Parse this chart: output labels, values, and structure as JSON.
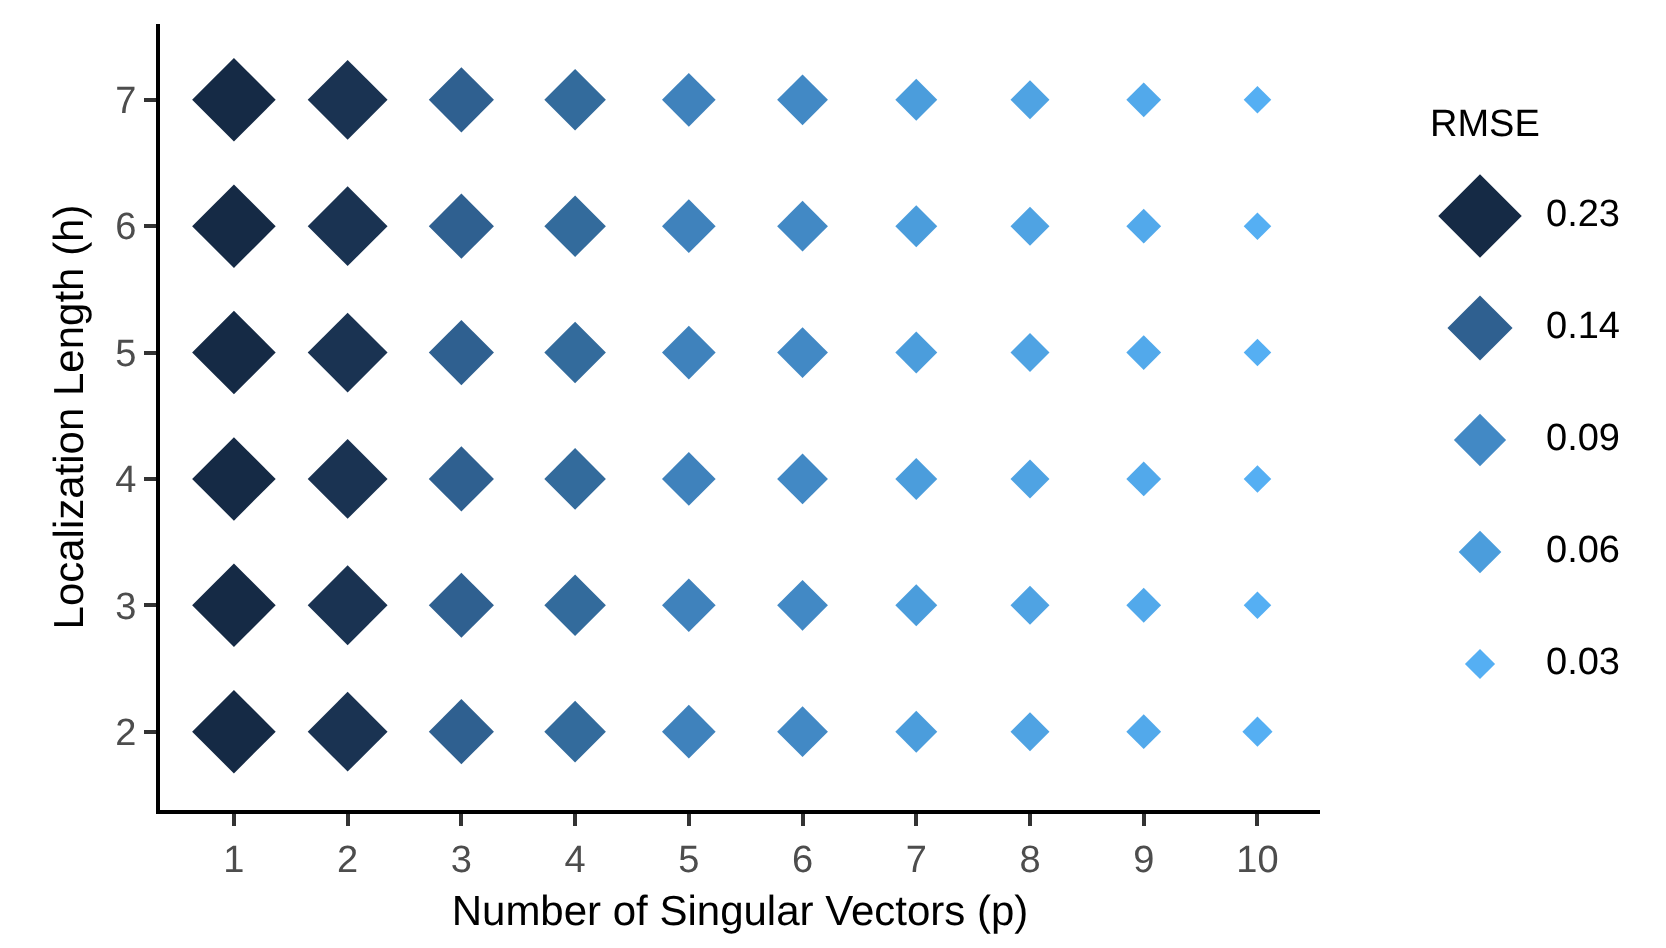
{
  "chart_data": {
    "type": "bubble",
    "xlabel": "Number of Singular Vectors (p)",
    "ylabel": "Localization Length (h)",
    "legend_title": "RMSE",
    "marker": "diamond",
    "grid": false,
    "xlim": [
      0.35,
      10.55
    ],
    "xticks": [
      1,
      2,
      3,
      4,
      5,
      6,
      7,
      8,
      9,
      10
    ],
    "ylim": [
      1.38,
      7.6
    ],
    "yticks": [
      2,
      3,
      4,
      5,
      6,
      7
    ],
    "size_legend": [
      0.23,
      0.14,
      0.09,
      0.06,
      0.03
    ],
    "series": [
      {
        "x": [
          1,
          2,
          3,
          4,
          5,
          6,
          7,
          8,
          9,
          10
        ],
        "values": [
          7,
          7,
          7,
          7,
          7,
          7,
          7,
          7,
          7,
          7
        ],
        "sizes": [
          0.23,
          0.21,
          0.14,
          0.125,
          0.095,
          0.085,
          0.058,
          0.05,
          0.04,
          0.025
        ],
        "colors": [
          "#152a45",
          "#1a3352",
          "#2f6090",
          "#336b9c",
          "#3f82bc",
          "#4289c5",
          "#4b9ddc",
          "#4fa3e3",
          "#52a9eb",
          "#55aff3"
        ]
      },
      {
        "x": [
          1,
          2,
          3,
          4,
          5,
          6,
          7,
          8,
          9,
          10
        ],
        "values": [
          6,
          6,
          6,
          6,
          6,
          6,
          6,
          6,
          6,
          6
        ],
        "sizes": [
          0.23,
          0.21,
          0.14,
          0.125,
          0.095,
          0.085,
          0.058,
          0.05,
          0.04,
          0.025
        ],
        "colors": [
          "#152a45",
          "#1a3352",
          "#2f6090",
          "#336b9c",
          "#3f82bc",
          "#4289c5",
          "#4b9ddc",
          "#4fa3e3",
          "#52a9eb",
          "#55aff3"
        ]
      },
      {
        "x": [
          1,
          2,
          3,
          4,
          5,
          6,
          7,
          8,
          9,
          10
        ],
        "values": [
          5,
          5,
          5,
          5,
          5,
          5,
          5,
          5,
          5,
          5
        ],
        "sizes": [
          0.23,
          0.21,
          0.14,
          0.125,
          0.095,
          0.085,
          0.058,
          0.05,
          0.04,
          0.025
        ],
        "colors": [
          "#152a45",
          "#1a3352",
          "#2f6090",
          "#336b9c",
          "#3f82bc",
          "#4289c5",
          "#4b9ddc",
          "#4fa3e3",
          "#52a9eb",
          "#55aff3"
        ]
      },
      {
        "x": [
          1,
          2,
          3,
          4,
          5,
          6,
          7,
          8,
          9,
          10
        ],
        "values": [
          4,
          4,
          4,
          4,
          4,
          4,
          4,
          4,
          4,
          4
        ],
        "sizes": [
          0.23,
          0.21,
          0.14,
          0.125,
          0.095,
          0.085,
          0.058,
          0.05,
          0.04,
          0.025
        ],
        "colors": [
          "#152a45",
          "#1a3352",
          "#2f6090",
          "#336b9c",
          "#3f82bc",
          "#4289c5",
          "#4b9ddc",
          "#4fa3e3",
          "#52a9eb",
          "#55aff3"
        ]
      },
      {
        "x": [
          1,
          2,
          3,
          4,
          5,
          6,
          7,
          8,
          9,
          10
        ],
        "values": [
          3,
          3,
          3,
          3,
          3,
          3,
          3,
          3,
          3,
          3
        ],
        "sizes": [
          0.23,
          0.21,
          0.14,
          0.125,
          0.095,
          0.085,
          0.058,
          0.05,
          0.04,
          0.025
        ],
        "colors": [
          "#152a45",
          "#1a3352",
          "#2f6090",
          "#336b9c",
          "#3f82bc",
          "#4289c5",
          "#4b9ddc",
          "#4fa3e3",
          "#52a9eb",
          "#55aff3"
        ]
      },
      {
        "x": [
          1,
          2,
          3,
          4,
          5,
          6,
          7,
          8,
          9,
          10
        ],
        "values": [
          2,
          2,
          2,
          2,
          2,
          2,
          2,
          2,
          2,
          2
        ],
        "sizes": [
          0.23,
          0.21,
          0.14,
          0.125,
          0.095,
          0.085,
          0.058,
          0.05,
          0.04,
          0.03
        ],
        "colors": [
          "#152a45",
          "#1a3352",
          "#2f6090",
          "#336b9c",
          "#3f82bc",
          "#4289c5",
          "#4b9ddc",
          "#4fa3e3",
          "#52a9eb",
          "#55aff3"
        ]
      }
    ]
  }
}
